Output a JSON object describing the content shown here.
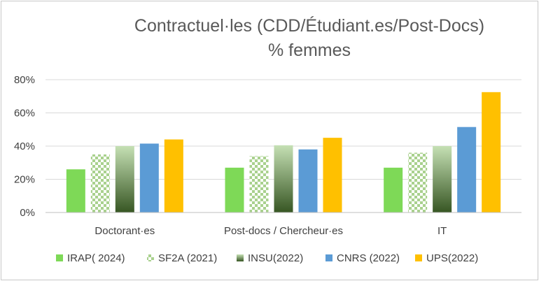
{
  "chart_data": {
    "type": "bar",
    "title": "Contractuel·les  (CDD/Étudiant.es/Post-Docs)",
    "subtitle": "% femmes",
    "categories": [
      "Doctorant·es",
      "Post-docs / Chercheur·es",
      "IT"
    ],
    "ylim": [
      0,
      80
    ],
    "yticks": [
      "0%",
      "20%",
      "40%",
      "60%",
      "80%"
    ],
    "grid": true,
    "legend_position": "bottom",
    "series": [
      {
        "name": "IRAP( 2024)",
        "values": [
          26,
          27,
          27
        ],
        "color": "#7ed957",
        "pattern": "solid"
      },
      {
        "name": "SF2A (2021)",
        "values": [
          35,
          34,
          36
        ],
        "color": "#a9d18e",
        "pattern": "checker"
      },
      {
        "name": "INSU(2022)",
        "values": [
          40,
          40.5,
          40
        ],
        "color": "#70ad47",
        "pattern": "gradient"
      },
      {
        "name": "CNRS (2022)",
        "values": [
          41.5,
          38,
          51.5
        ],
        "color": "#5b9bd5",
        "pattern": "solid"
      },
      {
        "name": "UPS(2022)",
        "values": [
          44,
          45,
          72.5
        ],
        "color": "#ffc000",
        "pattern": "solid"
      }
    ]
  }
}
